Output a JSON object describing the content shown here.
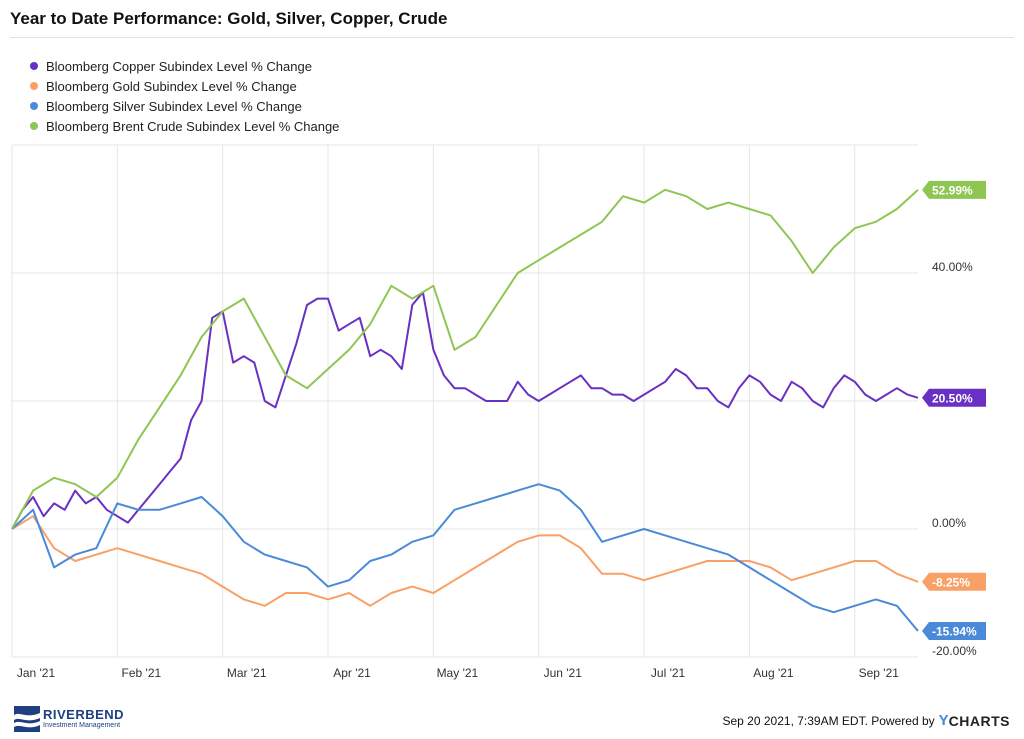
{
  "chart_data": {
    "type": "line",
    "title": "Year to Date Performance: Gold, Silver, Copper, Crude",
    "x_ticks": [
      "Jan '21",
      "Feb '21",
      "Mar '21",
      "Apr '21",
      "May '21",
      "Jun '21",
      "Jul '21",
      "Aug '21",
      "Sep '21"
    ],
    "y_ticks": [
      "40.00%",
      "0.00%",
      "-20.00%"
    ],
    "ylim": [
      -20,
      60
    ],
    "x_range": [
      0,
      8.6
    ],
    "grid": true,
    "legend_position": "top-left",
    "series": [
      {
        "name": "Bloomberg Copper Subindex Level % Change",
        "color": "#6930c3",
        "end_label": "20.50%",
        "x": [
          0,
          0.1,
          0.2,
          0.3,
          0.4,
          0.5,
          0.6,
          0.7,
          0.8,
          0.9,
          1.0,
          1.1,
          1.2,
          1.3,
          1.4,
          1.5,
          1.6,
          1.7,
          1.8,
          1.9,
          2.0,
          2.1,
          2.2,
          2.3,
          2.4,
          2.5,
          2.6,
          2.7,
          2.8,
          2.9,
          3.0,
          3.1,
          3.2,
          3.3,
          3.4,
          3.5,
          3.6,
          3.7,
          3.8,
          3.9,
          4.0,
          4.1,
          4.2,
          4.3,
          4.4,
          4.5,
          4.6,
          4.7,
          4.8,
          4.9,
          5.0,
          5.1,
          5.2,
          5.3,
          5.4,
          5.5,
          5.6,
          5.7,
          5.8,
          5.9,
          6.0,
          6.1,
          6.2,
          6.3,
          6.4,
          6.5,
          6.6,
          6.7,
          6.8,
          6.9,
          7.0,
          7.1,
          7.2,
          7.3,
          7.4,
          7.5,
          7.6,
          7.7,
          7.8,
          7.9,
          8.0,
          8.1,
          8.2,
          8.3,
          8.4,
          8.5,
          8.6
        ],
        "values": [
          0,
          3,
          5,
          2,
          4,
          3,
          6,
          4,
          5,
          3,
          2,
          1,
          3,
          5,
          7,
          9,
          11,
          17,
          20,
          33,
          34,
          26,
          27,
          26,
          20,
          19,
          24,
          29,
          35,
          36,
          36,
          31,
          32,
          33,
          27,
          28,
          27,
          25,
          35,
          37,
          28,
          24,
          22,
          22,
          21,
          20,
          20,
          20,
          23,
          21,
          20,
          21,
          22,
          23,
          24,
          22,
          22,
          21,
          21,
          20,
          21,
          22,
          23,
          25,
          24,
          22,
          22,
          20,
          19,
          22,
          24,
          23,
          21,
          20,
          23,
          22,
          20,
          19,
          22,
          24,
          23,
          21,
          20,
          21,
          22,
          21,
          20.5
        ]
      },
      {
        "name": "Bloomberg Gold Subindex Level % Change",
        "color": "#f9a066",
        "end_label": "-8.25%",
        "x": [
          0,
          0.2,
          0.4,
          0.6,
          0.8,
          1.0,
          1.2,
          1.4,
          1.6,
          1.8,
          2.0,
          2.2,
          2.4,
          2.6,
          2.8,
          3.0,
          3.2,
          3.4,
          3.6,
          3.8,
          4.0,
          4.2,
          4.4,
          4.6,
          4.8,
          5.0,
          5.2,
          5.4,
          5.6,
          5.8,
          6.0,
          6.2,
          6.4,
          6.6,
          6.8,
          7.0,
          7.2,
          7.4,
          7.6,
          7.8,
          8.0,
          8.2,
          8.4,
          8.6
        ],
        "values": [
          0,
          2,
          -3,
          -5,
          -4,
          -3,
          -4,
          -5,
          -6,
          -7,
          -9,
          -11,
          -12,
          -10,
          -10,
          -11,
          -10,
          -12,
          -10,
          -9,
          -10,
          -8,
          -6,
          -4,
          -2,
          -1,
          -1,
          -3,
          -7,
          -7,
          -8,
          -7,
          -6,
          -5,
          -5,
          -5,
          -6,
          -8,
          -7,
          -6,
          -5,
          -5,
          -7,
          -8.25
        ]
      },
      {
        "name": "Bloomberg Silver Subindex Level % Change",
        "color": "#4a8ad8",
        "end_label": "-15.94%",
        "x": [
          0,
          0.2,
          0.4,
          0.6,
          0.8,
          1.0,
          1.2,
          1.4,
          1.6,
          1.8,
          2.0,
          2.2,
          2.4,
          2.6,
          2.8,
          3.0,
          3.2,
          3.4,
          3.6,
          3.8,
          4.0,
          4.2,
          4.4,
          4.6,
          4.8,
          5.0,
          5.2,
          5.4,
          5.6,
          5.8,
          6.0,
          6.2,
          6.4,
          6.6,
          6.8,
          7.0,
          7.2,
          7.4,
          7.6,
          7.8,
          8.0,
          8.2,
          8.4,
          8.6
        ],
        "values": [
          0,
          3,
          -6,
          -4,
          -3,
          4,
          3,
          3,
          4,
          5,
          2,
          -2,
          -4,
          -5,
          -6,
          -9,
          -8,
          -5,
          -4,
          -2,
          -1,
          3,
          4,
          5,
          6,
          7,
          6,
          3,
          -2,
          -1,
          0,
          -1,
          -2,
          -3,
          -4,
          -6,
          -8,
          -10,
          -12,
          -13,
          -12,
          -11,
          -12,
          -15.94
        ]
      },
      {
        "name": "Bloomberg Brent Crude Subindex Level % Change",
        "color": "#8fc553",
        "end_label": "52.99%",
        "x": [
          0,
          0.2,
          0.4,
          0.6,
          0.8,
          1.0,
          1.2,
          1.4,
          1.6,
          1.8,
          2.0,
          2.2,
          2.4,
          2.6,
          2.8,
          3.0,
          3.2,
          3.4,
          3.6,
          3.8,
          4.0,
          4.2,
          4.4,
          4.6,
          4.8,
          5.0,
          5.2,
          5.4,
          5.6,
          5.8,
          6.0,
          6.2,
          6.4,
          6.6,
          6.8,
          7.0,
          7.2,
          7.4,
          7.6,
          7.8,
          8.0,
          8.2,
          8.4,
          8.6
        ],
        "values": [
          0,
          6,
          8,
          7,
          5,
          8,
          14,
          19,
          24,
          30,
          34,
          36,
          30,
          24,
          22,
          25,
          28,
          32,
          38,
          36,
          38,
          28,
          30,
          35,
          40,
          42,
          44,
          46,
          48,
          52,
          51,
          53,
          52,
          50,
          51,
          50,
          49,
          45,
          40,
          44,
          47,
          48,
          50,
          52.99
        ]
      }
    ]
  },
  "footer": {
    "logo_name": "RIVERBEND",
    "logo_sub": "Investment Management",
    "timestamp": "Sep 20 2021, 7:39AM EDT. Powered by",
    "brand_y": "Y",
    "brand_rest": "CHARTS"
  },
  "colors": {
    "grid": "#e6e6e6",
    "axis_text": "#333333",
    "logo": "#1e3f80",
    "ycharts_y": "#3d8cd8"
  }
}
